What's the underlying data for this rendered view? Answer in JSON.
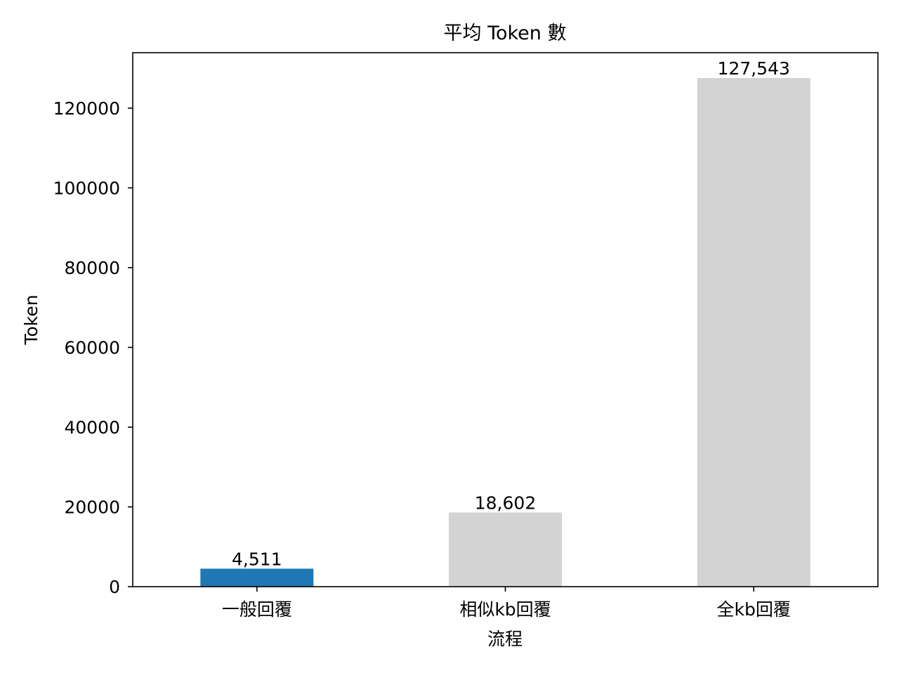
{
  "chart_data": {
    "type": "bar",
    "title": "平均 Token 數",
    "xlabel": "流程",
    "ylabel": "Token",
    "categories": [
      "一般回覆",
      "相似kb回覆",
      "全kb回覆"
    ],
    "values": [
      4511,
      18602,
      127543
    ],
    "value_labels": [
      "4,511",
      "18,602",
      "127,543"
    ],
    "bar_colors": [
      "#1f77b4",
      "#d3d3d3",
      "#d3d3d3"
    ],
    "ylim": [
      0,
      133900
    ],
    "yticks": [
      0,
      20000,
      40000,
      60000,
      80000,
      100000,
      120000
    ],
    "ytick_labels": [
      "0",
      "20000",
      "40000",
      "60000",
      "80000",
      "100000",
      "120000"
    ],
    "grid": false,
    "legend": "none"
  }
}
